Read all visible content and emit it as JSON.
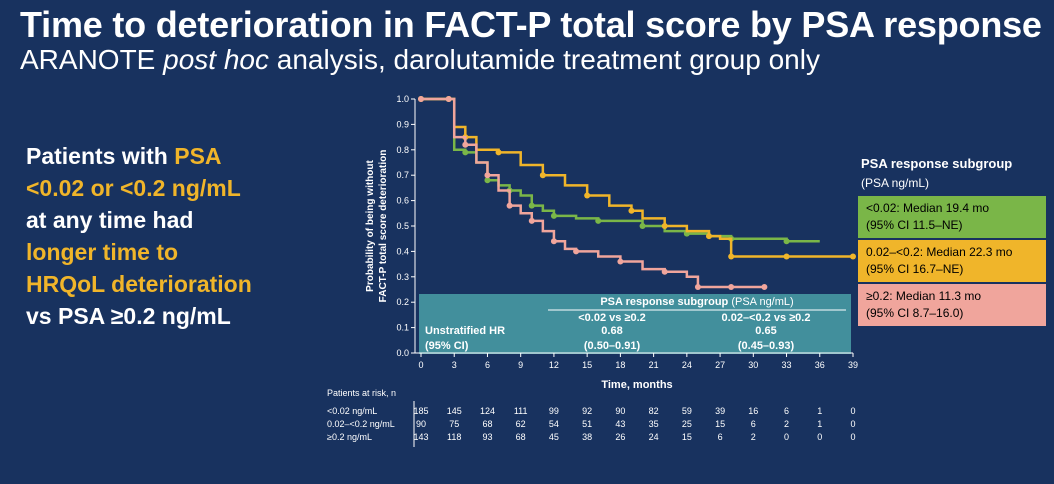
{
  "header": {
    "title": "Time to deterioration in FACT-P total score by PSA response",
    "subtitle_plain1": "ARANOTE ",
    "subtitle_italic": "post hoc",
    "subtitle_plain2": " analysis, darolutamide treatment group only"
  },
  "key_message": {
    "l1a": "Patients with ",
    "l1b": "PSA",
    "l2": "<0.02 or <0.2 ng/mL",
    "l3": "at any time had",
    "l4": "longer time to",
    "l5": "HRQoL deterioration",
    "l6": "vs PSA ≥0.2 ng/mL"
  },
  "legend": {
    "title": "PSA response subgroup",
    "unit": "(PSA ng/mL)",
    "items": [
      {
        "line1": "<0.02: Median 19.4 mo",
        "line2": "(95% CI 11.5–NE)",
        "color": "#7ab648"
      },
      {
        "line1": "0.02–<0.2: Median 22.3 mo",
        "line2": "(95% CI 16.7–NE)",
        "color": "#f0b52a"
      },
      {
        "line1": "≥0.2: Median 11.3 mo",
        "line2": "(95% CI 8.7–16.0)",
        "color": "#f0a59c"
      }
    ]
  },
  "chart_data": {
    "type": "line",
    "xlabel": "Time, months",
    "ylabel_line1": "Probability of being without",
    "ylabel_line2": "FACT-P total score deterioration",
    "xlim": [
      0,
      39
    ],
    "ylim": [
      0,
      1.0
    ],
    "x_ticks": [
      0,
      3,
      6,
      9,
      12,
      15,
      18,
      21,
      24,
      27,
      30,
      33,
      36,
      39
    ],
    "y_ticks": [
      0.0,
      0.1,
      0.2,
      0.3,
      0.4,
      0.5,
      0.6,
      0.7,
      0.8,
      0.9,
      1.0
    ],
    "series": [
      {
        "name": "<0.02",
        "color": "#7ab648",
        "points": [
          [
            0,
            1.0
          ],
          [
            2.5,
            1.0
          ],
          [
            3,
            0.8
          ],
          [
            4,
            0.79
          ],
          [
            5,
            0.75
          ],
          [
            6,
            0.68
          ],
          [
            7,
            0.66
          ],
          [
            8,
            0.64
          ],
          [
            9,
            0.62
          ],
          [
            10,
            0.58
          ],
          [
            11,
            0.56
          ],
          [
            12,
            0.54
          ],
          [
            14,
            0.53
          ],
          [
            16,
            0.52
          ],
          [
            18,
            0.52
          ],
          [
            20,
            0.5
          ],
          [
            22,
            0.48
          ],
          [
            24,
            0.47
          ],
          [
            26,
            0.46
          ],
          [
            28,
            0.45
          ],
          [
            30,
            0.45
          ],
          [
            33,
            0.44
          ],
          [
            36,
            0.44
          ]
        ]
      },
      {
        "name": "0.02–<0.2",
        "color": "#f0b52a",
        "points": [
          [
            0,
            1.0
          ],
          [
            2.5,
            1.0
          ],
          [
            3,
            0.89
          ],
          [
            4,
            0.85
          ],
          [
            5,
            0.8
          ],
          [
            7,
            0.79
          ],
          [
            9,
            0.74
          ],
          [
            11,
            0.7
          ],
          [
            13,
            0.66
          ],
          [
            15,
            0.62
          ],
          [
            17,
            0.58
          ],
          [
            19,
            0.56
          ],
          [
            20,
            0.53
          ],
          [
            22,
            0.5
          ],
          [
            24,
            0.48
          ],
          [
            26,
            0.46
          ],
          [
            27,
            0.45
          ],
          [
            28,
            0.38
          ],
          [
            30,
            0.38
          ],
          [
            33,
            0.38
          ],
          [
            36,
            0.38
          ],
          [
            39,
            0.38
          ]
        ]
      },
      {
        "name": "≥0.2",
        "color": "#f0a59c",
        "points": [
          [
            0,
            1.0
          ],
          [
            2.5,
            1.0
          ],
          [
            3,
            0.85
          ],
          [
            4,
            0.82
          ],
          [
            5,
            0.75
          ],
          [
            6,
            0.7
          ],
          [
            7,
            0.64
          ],
          [
            8,
            0.58
          ],
          [
            9,
            0.55
          ],
          [
            10,
            0.52
          ],
          [
            11,
            0.48
          ],
          [
            12,
            0.44
          ],
          [
            13,
            0.41
          ],
          [
            14,
            0.4
          ],
          [
            16,
            0.38
          ],
          [
            18,
            0.36
          ],
          [
            20,
            0.33
          ],
          [
            22,
            0.32
          ],
          [
            24,
            0.3
          ],
          [
            25,
            0.26
          ],
          [
            26,
            0.26
          ],
          [
            28,
            0.26
          ],
          [
            30,
            0.26
          ],
          [
            31,
            0.26
          ]
        ]
      }
    ],
    "hr_table": {
      "header": "PSA response subgroup",
      "header_unit": " (PSA ng/mL)",
      "row_label_line1": "Unstratified HR",
      "row_label_line2": "(95% CI)",
      "columns": [
        {
          "comparison": "<0.02 vs ≥0.2",
          "hr": "0.68",
          "ci": "(0.50–0.91)"
        },
        {
          "comparison": "0.02–<0.2 vs ≥0.2",
          "hr": "0.65",
          "ci": "(0.45–0.93)"
        }
      ]
    },
    "risk_table": {
      "title": "Patients at risk, n",
      "rows": [
        {
          "label": "<0.02 ng/mL",
          "values": [
            185,
            145,
            124,
            111,
            99,
            92,
            90,
            82,
            59,
            39,
            16,
            6,
            1,
            0
          ]
        },
        {
          "label": "0.02–<0.2 ng/mL",
          "values": [
            90,
            75,
            68,
            62,
            54,
            51,
            43,
            35,
            25,
            15,
            6,
            2,
            1,
            0
          ]
        },
        {
          "label": "≥0.2 ng/mL",
          "values": [
            143,
            118,
            93,
            68,
            45,
            38,
            26,
            24,
            15,
            6,
            2,
            0,
            0,
            0
          ]
        }
      ]
    }
  }
}
